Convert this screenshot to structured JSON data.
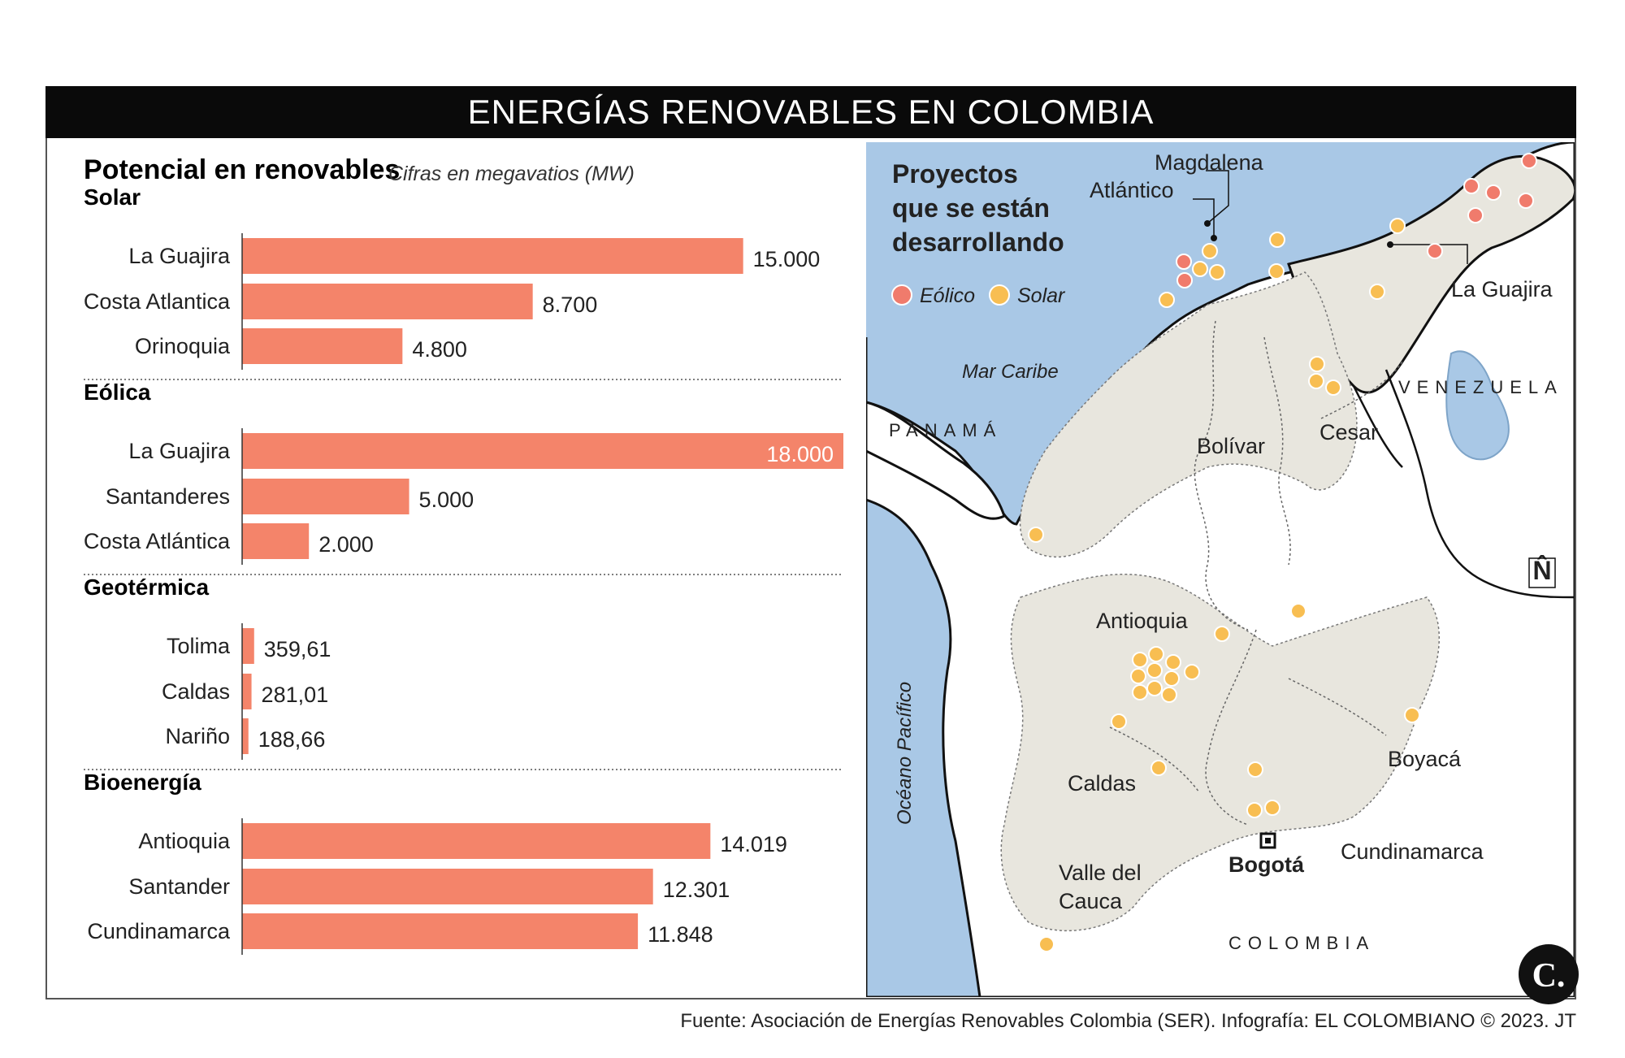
{
  "banner_title": "ENERGÍAS RENOVABLES EN COLOMBIA",
  "colors": {
    "bar": "#f4846a",
    "eolico": "#f07b6c",
    "solar": "#f8be52",
    "sea": "#a9c8e6",
    "land": "#e8e6de"
  },
  "chart_data": {
    "type": "bar",
    "orientation": "horizontal",
    "title": "Potencial en renovables",
    "subtitle": "Cifras en megavatios (MW)",
    "max_value": 18000,
    "groups": [
      {
        "name": "Solar",
        "categories": [
          "La Guajira",
          "Costa Atlantica",
          "Orinoquia"
        ],
        "values": [
          15000,
          8700,
          4800
        ],
        "labels": [
          "15.000",
          "8.700",
          "4.800"
        ]
      },
      {
        "name": "Eólica",
        "categories": [
          "La Guajira",
          "Santanderes",
          "Costa Atlántica"
        ],
        "values": [
          18000,
          5000,
          2000
        ],
        "labels": [
          "18.000",
          "5.000",
          "2.000"
        ]
      },
      {
        "name": "Geotérmica",
        "categories": [
          "Tolima",
          "Caldas",
          "Nariño"
        ],
        "values": [
          359.61,
          281.01,
          188.66
        ],
        "labels": [
          "359,61",
          "281,01",
          "188,66"
        ]
      },
      {
        "name": "Bioenergía",
        "categories": [
          "Antioquia",
          "Santander",
          "Cundinamarca"
        ],
        "values": [
          14019,
          12301,
          11848
        ],
        "labels": [
          "14.019",
          "12.301",
          "11.848"
        ]
      }
    ]
  },
  "map": {
    "title_lines": [
      "Proyectos",
      "que se están",
      "desarrollando"
    ],
    "legend": {
      "eolico": "Eólico",
      "solar": "Solar"
    },
    "labels": {
      "magdalena": "Magdalena",
      "atlantico": "Atlántico",
      "la_guajira": "La Guajira",
      "mar_caribe": "Mar Caribe",
      "panama": "PANAMÁ",
      "venezuela": "VENEZUELA",
      "bolivar": "Bolívar",
      "cesar": "Cesar",
      "antioquia": "Antioquia",
      "oceano_pacifico": "Océano Pacífico",
      "caldas": "Caldas",
      "boyaca": "Boyacá",
      "cundinamarca": "Cundinamarca",
      "valle_line1": "Valle del",
      "valle_line2": "Cauca",
      "bogota": "Bogotá",
      "colombia": "COLOMBIA",
      "north_symbol": "N̂"
    }
  },
  "logo_letter": "C.",
  "footer": "Fuente: Asociación de Energías Renovables Colombia (SER). Infografía: EL COLOMBIANO © 2023. JT"
}
